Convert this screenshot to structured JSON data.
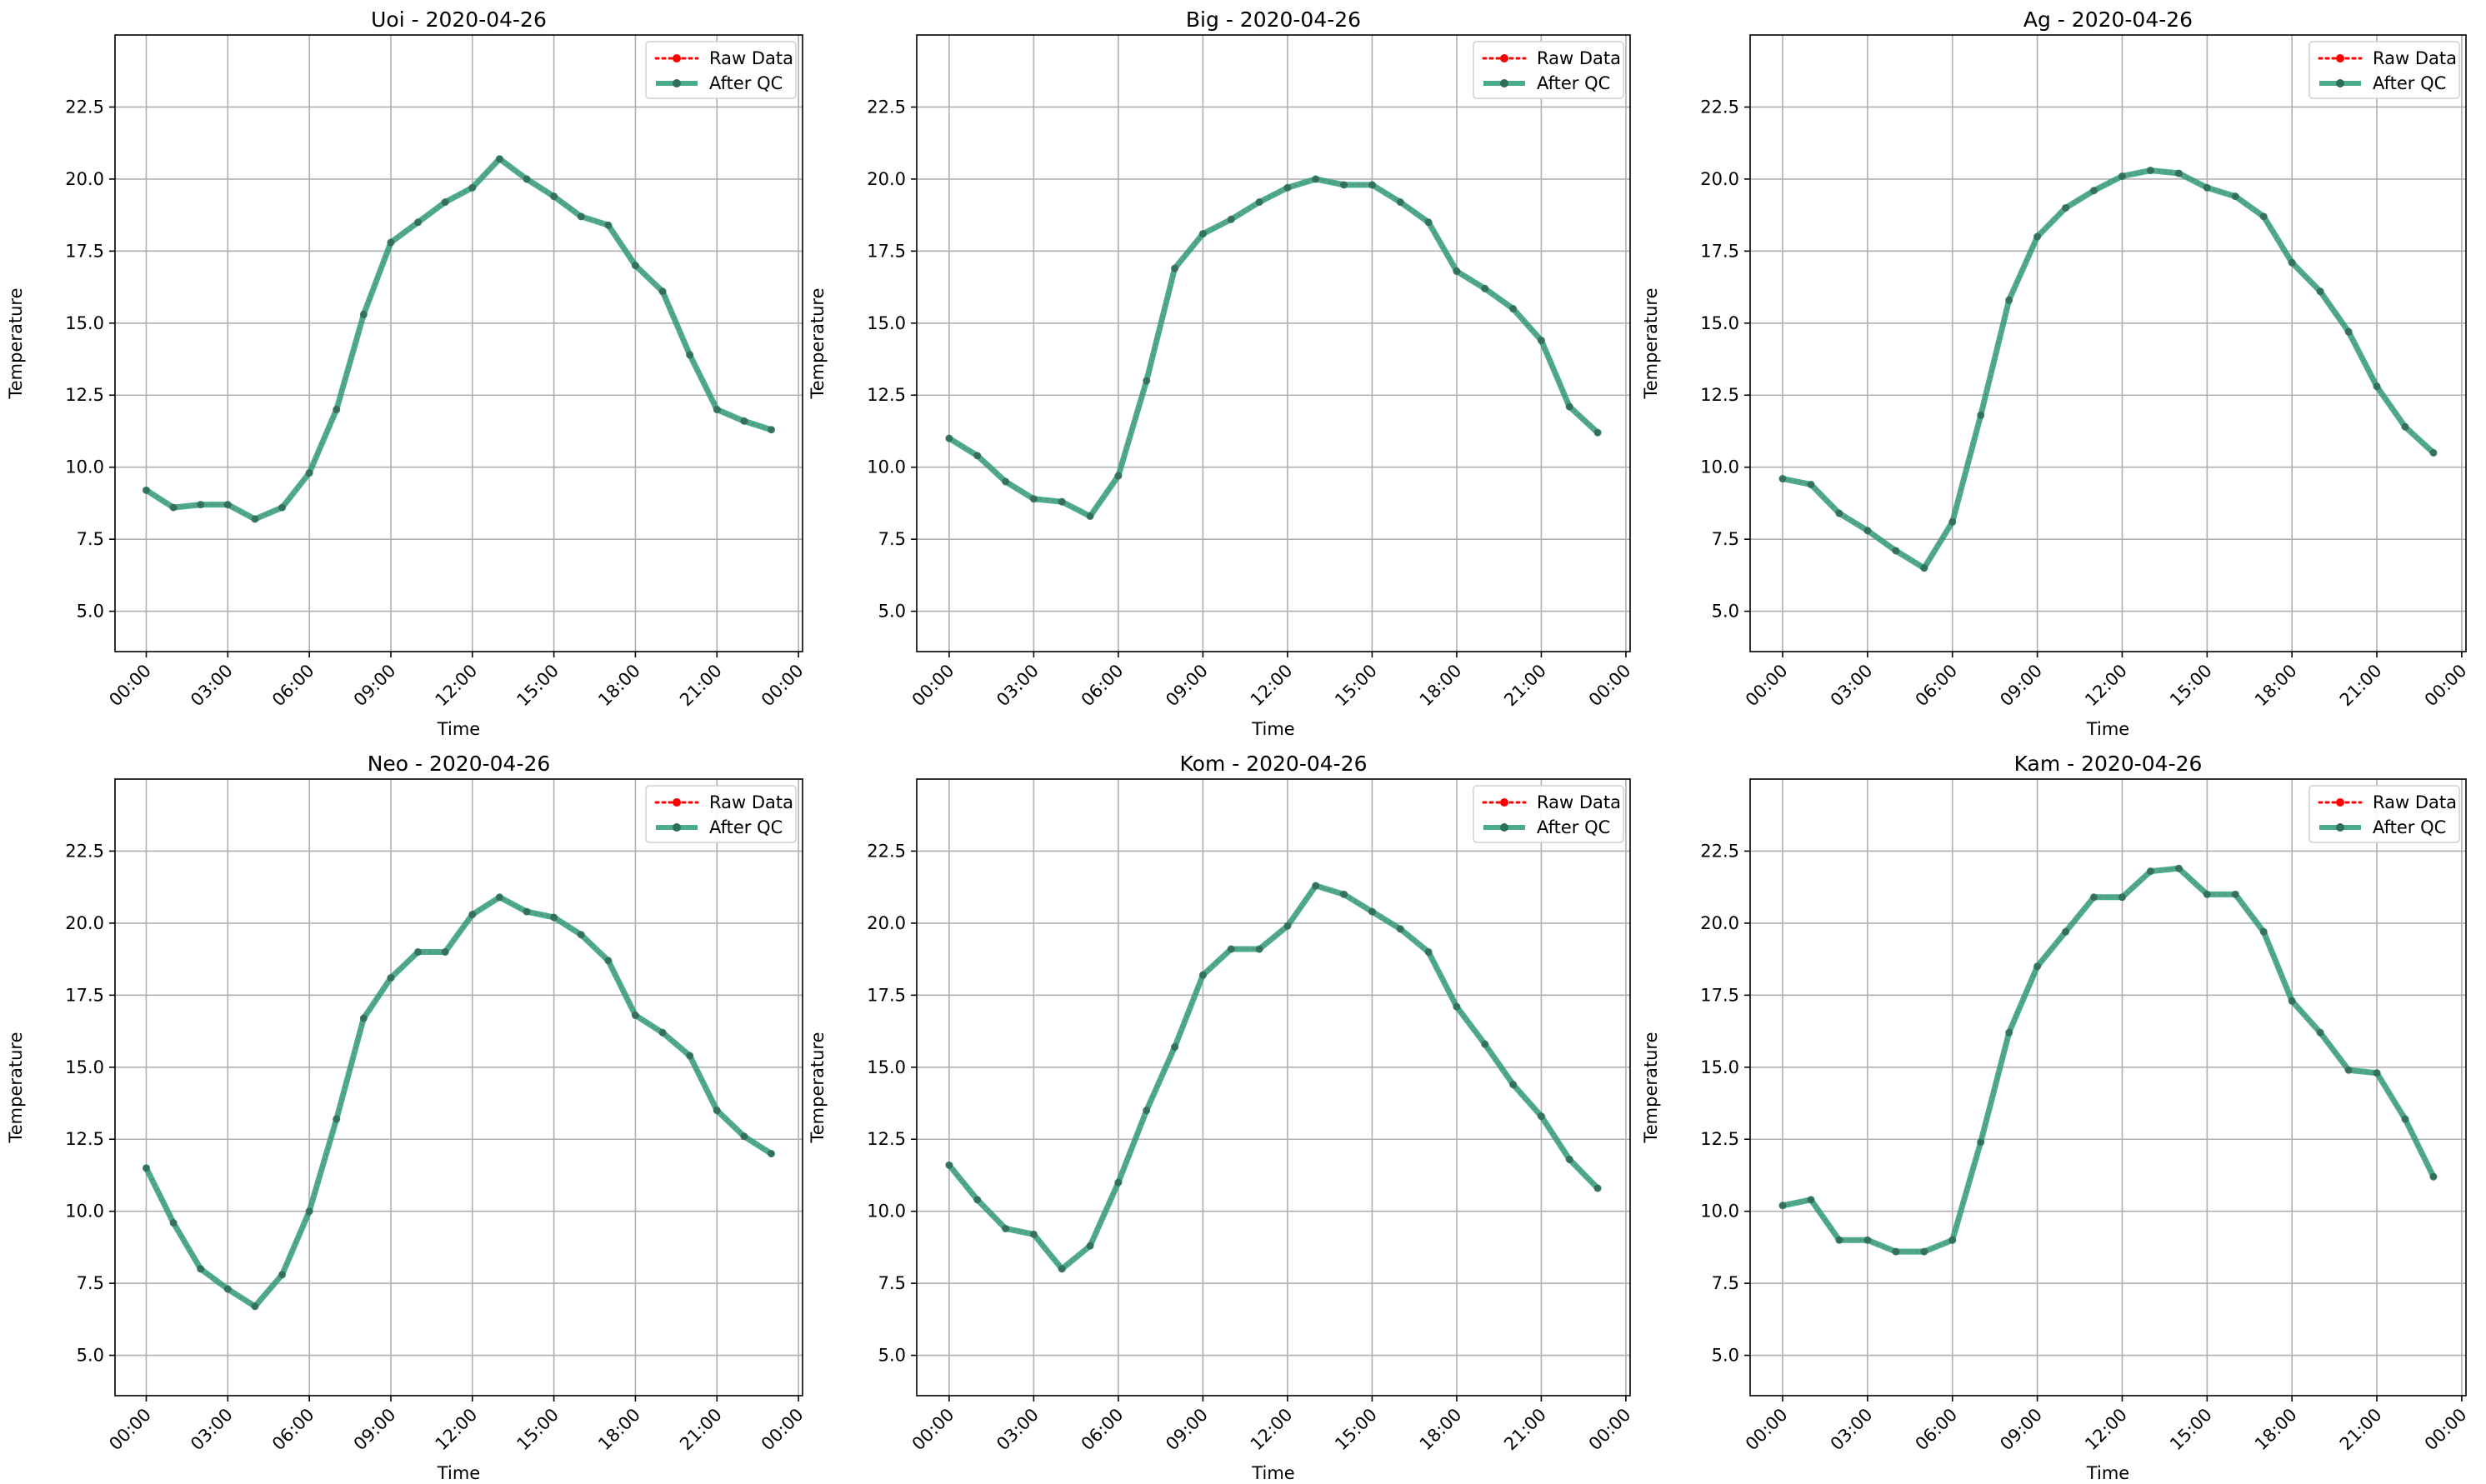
{
  "figure": {
    "background": "#ffffff"
  },
  "style": {
    "raw_color": "#ff0000",
    "qc_color": "#2a9d78",
    "qc_marker_color": "#2f6f5a",
    "grid_color": "#b0b0b0",
    "axis_color": "#000000"
  },
  "chart_data": [
    {
      "type": "line",
      "title": "Uoi - 2020-04-26",
      "xlabel": "Time",
      "ylabel": "Temperature",
      "x_ticks": [
        "00:00",
        "03:00",
        "06:00",
        "09:00",
        "12:00",
        "15:00",
        "18:00",
        "21:00",
        "00:00"
      ],
      "y_ticks": [
        "5.0",
        "7.5",
        "10.0",
        "12.5",
        "15.0",
        "17.5",
        "20.0",
        "22.5"
      ],
      "xlim": [
        "2020-04-26 00:00",
        "2020-04-27 00:00"
      ],
      "ylim": [
        3.6,
        25
      ],
      "grid": true,
      "legend": "top-right",
      "x": [
        "00:00",
        "01:00",
        "02:00",
        "03:00",
        "04:00",
        "05:00",
        "06:00",
        "07:00",
        "08:00",
        "09:00",
        "10:00",
        "11:00",
        "12:00",
        "13:00",
        "14:00",
        "15:00",
        "16:00",
        "17:00",
        "18:00",
        "19:00",
        "20:00",
        "21:00",
        "22:00",
        "23:00"
      ],
      "series": [
        {
          "name": "Raw Data",
          "values": [
            9.2,
            8.6,
            8.7,
            8.7,
            8.2,
            8.6,
            9.8,
            12.0,
            15.3,
            17.8,
            18.5,
            19.2,
            19.7,
            20.7,
            20.0,
            19.4,
            18.7,
            18.4,
            17.0,
            16.1,
            13.9,
            12.0,
            11.6,
            11.3
          ]
        },
        {
          "name": "After QC",
          "values": [
            9.2,
            8.6,
            8.7,
            8.7,
            8.2,
            8.6,
            9.8,
            12.0,
            15.3,
            17.8,
            18.5,
            19.2,
            19.7,
            20.7,
            20.0,
            19.4,
            18.7,
            18.4,
            17.0,
            16.1,
            13.9,
            12.0,
            11.6,
            11.3
          ]
        }
      ]
    },
    {
      "type": "line",
      "title": "Big - 2020-04-26",
      "xlabel": "Time",
      "ylabel": "Temperature",
      "x_ticks": [
        "00:00",
        "03:00",
        "06:00",
        "09:00",
        "12:00",
        "15:00",
        "18:00",
        "21:00",
        "00:00"
      ],
      "y_ticks": [
        "5.0",
        "7.5",
        "10.0",
        "12.5",
        "15.0",
        "17.5",
        "20.0",
        "22.5"
      ],
      "xlim": [
        "2020-04-26 00:00",
        "2020-04-27 00:00"
      ],
      "ylim": [
        3.6,
        25
      ],
      "grid": true,
      "legend": "top-right",
      "x": [
        "00:00",
        "01:00",
        "02:00",
        "03:00",
        "04:00",
        "05:00",
        "06:00",
        "07:00",
        "08:00",
        "09:00",
        "10:00",
        "11:00",
        "12:00",
        "13:00",
        "14:00",
        "15:00",
        "16:00",
        "17:00",
        "18:00",
        "19:00",
        "20:00",
        "21:00",
        "22:00",
        "23:00"
      ],
      "series": [
        {
          "name": "Raw Data",
          "values": [
            11.0,
            10.4,
            9.5,
            8.9,
            8.8,
            8.3,
            9.7,
            13.0,
            16.9,
            18.1,
            18.6,
            19.2,
            19.7,
            20.0,
            19.8,
            19.8,
            19.2,
            18.5,
            16.8,
            16.2,
            15.5,
            14.4,
            12.1,
            11.2
          ]
        },
        {
          "name": "After QC",
          "values": [
            11.0,
            10.4,
            9.5,
            8.9,
            8.8,
            8.3,
            9.7,
            13.0,
            16.9,
            18.1,
            18.6,
            19.2,
            19.7,
            20.0,
            19.8,
            19.8,
            19.2,
            18.5,
            16.8,
            16.2,
            15.5,
            14.4,
            12.1,
            11.2
          ]
        }
      ]
    },
    {
      "type": "line",
      "title": "Ag - 2020-04-26",
      "xlabel": "Time",
      "ylabel": "Temperature",
      "x_ticks": [
        "00:00",
        "03:00",
        "06:00",
        "09:00",
        "12:00",
        "15:00",
        "18:00",
        "21:00",
        "00:00"
      ],
      "y_ticks": [
        "5.0",
        "7.5",
        "10.0",
        "12.5",
        "15.0",
        "17.5",
        "20.0",
        "22.5"
      ],
      "xlim": [
        "2020-04-26 00:00",
        "2020-04-27 00:00"
      ],
      "ylim": [
        3.6,
        25
      ],
      "grid": true,
      "legend": "top-right",
      "x": [
        "00:00",
        "01:00",
        "02:00",
        "03:00",
        "04:00",
        "05:00",
        "06:00",
        "07:00",
        "08:00",
        "09:00",
        "10:00",
        "11:00",
        "12:00",
        "13:00",
        "14:00",
        "15:00",
        "16:00",
        "17:00",
        "18:00",
        "19:00",
        "20:00",
        "21:00",
        "22:00",
        "23:00"
      ],
      "series": [
        {
          "name": "Raw Data",
          "values": [
            9.6,
            9.4,
            8.4,
            7.8,
            7.1,
            6.5,
            8.1,
            11.8,
            15.8,
            18.0,
            19.0,
            19.6,
            20.1,
            20.3,
            20.2,
            19.7,
            19.4,
            18.7,
            17.1,
            16.1,
            14.7,
            12.8,
            11.4,
            10.5
          ]
        },
        {
          "name": "After QC",
          "values": [
            9.6,
            9.4,
            8.4,
            7.8,
            7.1,
            6.5,
            8.1,
            11.8,
            15.8,
            18.0,
            19.0,
            19.6,
            20.1,
            20.3,
            20.2,
            19.7,
            19.4,
            18.7,
            17.1,
            16.1,
            14.7,
            12.8,
            11.4,
            10.5
          ]
        }
      ]
    },
    {
      "type": "line",
      "title": "Neo - 2020-04-26",
      "xlabel": "Time",
      "ylabel": "Temperature",
      "x_ticks": [
        "00:00",
        "03:00",
        "06:00",
        "09:00",
        "12:00",
        "15:00",
        "18:00",
        "21:00",
        "00:00"
      ],
      "y_ticks": [
        "5.0",
        "7.5",
        "10.0",
        "12.5",
        "15.0",
        "17.5",
        "20.0",
        "22.5"
      ],
      "xlim": [
        "2020-04-26 00:00",
        "2020-04-27 00:00"
      ],
      "ylim": [
        3.6,
        25
      ],
      "grid": true,
      "legend": "top-right",
      "x": [
        "00:00",
        "01:00",
        "02:00",
        "03:00",
        "04:00",
        "05:00",
        "06:00",
        "07:00",
        "08:00",
        "09:00",
        "10:00",
        "11:00",
        "12:00",
        "13:00",
        "14:00",
        "15:00",
        "16:00",
        "17:00",
        "18:00",
        "19:00",
        "20:00",
        "21:00",
        "22:00",
        "23:00"
      ],
      "series": [
        {
          "name": "Raw Data",
          "values": [
            11.5,
            9.6,
            8.0,
            7.3,
            6.7,
            7.8,
            10.0,
            13.2,
            16.7,
            18.1,
            19.0,
            19.0,
            20.3,
            20.9,
            20.4,
            20.2,
            19.6,
            18.7,
            16.8,
            16.2,
            15.4,
            13.5,
            12.6,
            12.0
          ]
        },
        {
          "name": "After QC",
          "values": [
            11.5,
            9.6,
            8.0,
            7.3,
            6.7,
            7.8,
            10.0,
            13.2,
            16.7,
            18.1,
            19.0,
            19.0,
            20.3,
            20.9,
            20.4,
            20.2,
            19.6,
            18.7,
            16.8,
            16.2,
            15.4,
            13.5,
            12.6,
            12.0
          ]
        }
      ]
    },
    {
      "type": "line",
      "title": "Kom - 2020-04-26",
      "xlabel": "Time",
      "ylabel": "Temperature",
      "x_ticks": [
        "00:00",
        "03:00",
        "06:00",
        "09:00",
        "12:00",
        "15:00",
        "18:00",
        "21:00",
        "00:00"
      ],
      "y_ticks": [
        "5.0",
        "7.5",
        "10.0",
        "12.5",
        "15.0",
        "17.5",
        "20.0",
        "22.5"
      ],
      "xlim": [
        "2020-04-26 00:00",
        "2020-04-27 00:00"
      ],
      "ylim": [
        3.6,
        25
      ],
      "grid": true,
      "legend": "top-right",
      "x": [
        "00:00",
        "01:00",
        "02:00",
        "03:00",
        "04:00",
        "05:00",
        "06:00",
        "07:00",
        "08:00",
        "09:00",
        "10:00",
        "11:00",
        "12:00",
        "13:00",
        "14:00",
        "15:00",
        "16:00",
        "17:00",
        "18:00",
        "19:00",
        "20:00",
        "21:00",
        "22:00",
        "23:00"
      ],
      "series": [
        {
          "name": "Raw Data",
          "values": [
            11.6,
            10.4,
            9.4,
            9.2,
            8.0,
            8.8,
            11.0,
            13.5,
            15.7,
            18.2,
            19.1,
            19.1,
            19.9,
            21.3,
            21.0,
            20.4,
            19.8,
            19.0,
            17.1,
            15.8,
            14.4,
            13.3,
            11.8,
            10.8
          ]
        },
        {
          "name": "After QC",
          "values": [
            11.6,
            10.4,
            9.4,
            9.2,
            8.0,
            8.8,
            11.0,
            13.5,
            15.7,
            18.2,
            19.1,
            19.1,
            19.9,
            21.3,
            21.0,
            20.4,
            19.8,
            19.0,
            17.1,
            15.8,
            14.4,
            13.3,
            11.8,
            10.8
          ]
        }
      ]
    },
    {
      "type": "line",
      "title": "Kam - 2020-04-26",
      "xlabel": "Time",
      "ylabel": "Temperature",
      "x_ticks": [
        "00:00",
        "03:00",
        "06:00",
        "09:00",
        "12:00",
        "15:00",
        "18:00",
        "21:00",
        "00:00"
      ],
      "y_ticks": [
        "5.0",
        "7.5",
        "10.0",
        "12.5",
        "15.0",
        "17.5",
        "20.0",
        "22.5"
      ],
      "xlim": [
        "2020-04-26 00:00",
        "2020-04-27 00:00"
      ],
      "ylim": [
        3.6,
        25
      ],
      "grid": true,
      "legend": "top-right",
      "x": [
        "00:00",
        "01:00",
        "02:00",
        "03:00",
        "04:00",
        "05:00",
        "06:00",
        "07:00",
        "08:00",
        "09:00",
        "10:00",
        "11:00",
        "12:00",
        "13:00",
        "14:00",
        "15:00",
        "16:00",
        "17:00",
        "18:00",
        "19:00",
        "20:00",
        "21:00",
        "22:00",
        "23:00"
      ],
      "series": [
        {
          "name": "Raw Data",
          "values": [
            10.2,
            10.4,
            9.0,
            9.0,
            8.6,
            8.6,
            9.0,
            12.4,
            16.2,
            18.5,
            19.7,
            20.9,
            20.9,
            21.8,
            21.9,
            21.0,
            21.0,
            19.7,
            17.3,
            16.2,
            14.9,
            14.8,
            13.2,
            11.2
          ]
        },
        {
          "name": "After QC",
          "values": [
            10.2,
            10.4,
            9.0,
            9.0,
            8.6,
            8.6,
            9.0,
            12.4,
            16.2,
            18.5,
            19.7,
            20.9,
            20.9,
            21.8,
            21.9,
            21.0,
            21.0,
            19.7,
            17.3,
            16.2,
            14.9,
            14.8,
            13.2,
            11.2
          ]
        }
      ]
    }
  ]
}
